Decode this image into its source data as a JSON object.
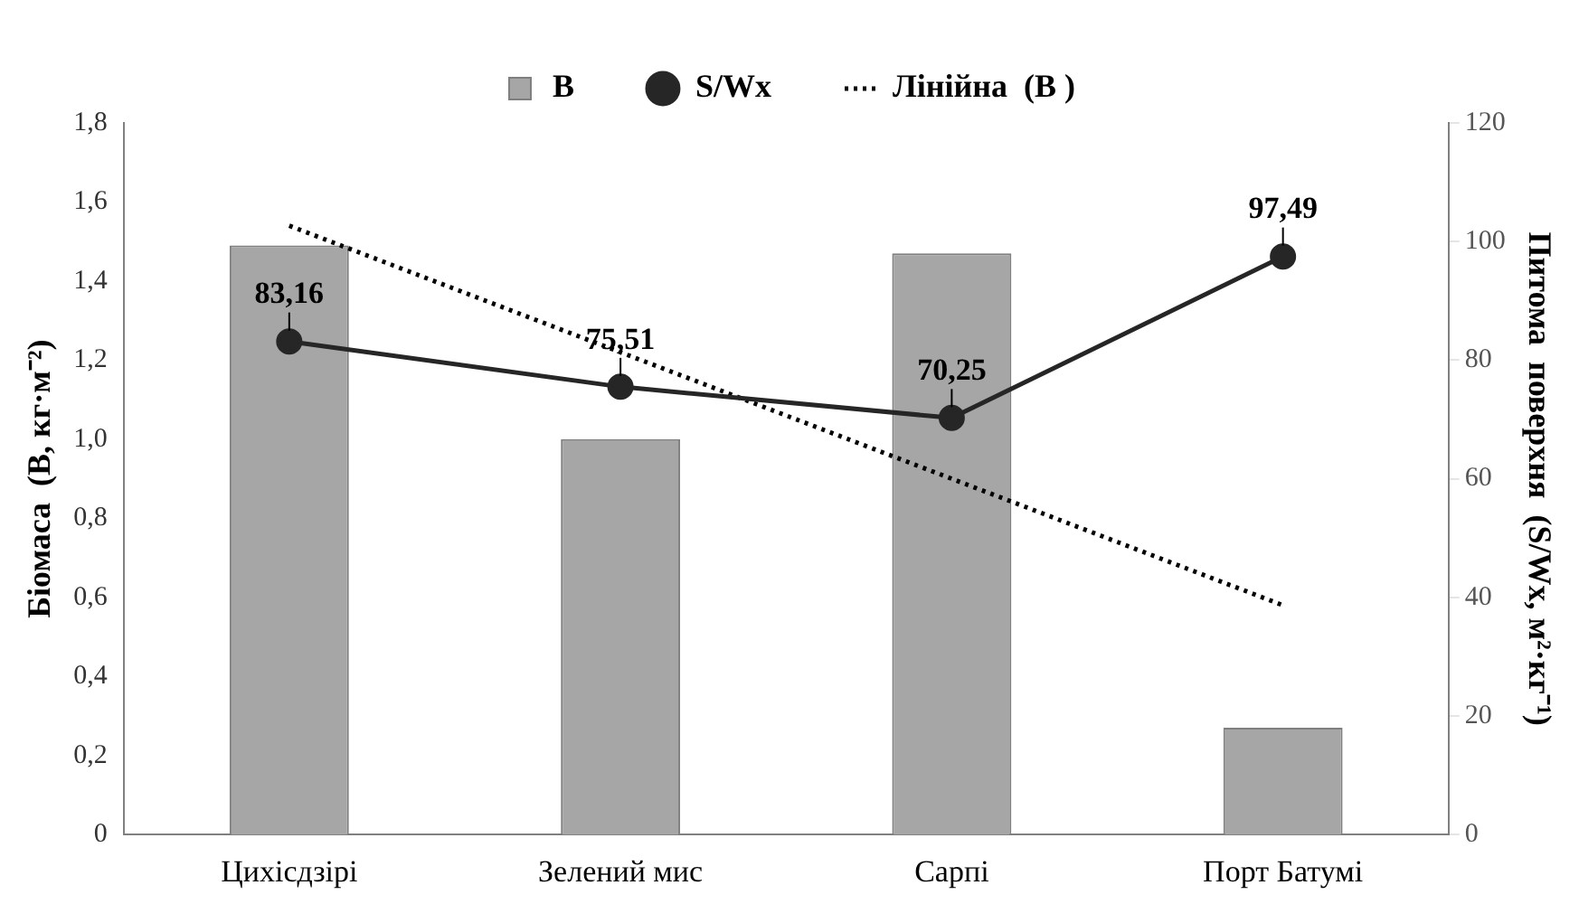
{
  "chart_data": {
    "type": "bar",
    "categories": [
      "Цихісдзірі",
      "Зелений мис",
      "Сарпі",
      "Порт Батумі"
    ],
    "ylabel": "Біомаса  (B, кг·м⁻²)",
    "y2label": "Питома  поверхня  (S/Wx, м²·кг⁻¹)",
    "series": [
      {
        "name": "B",
        "color": "#a6a6a6",
        "values": [
          1.49,
          1.0,
          1.47,
          0.27
        ]
      },
      {
        "name": "S/Wx",
        "type": "line",
        "axis": "y2",
        "color": "#262626",
        "marker": "circle",
        "values": [
          83.16,
          75.51,
          70.25,
          97.49
        ],
        "value_labels": [
          "83,16",
          "75,51",
          "70,25",
          "97,49"
        ]
      },
      {
        "name": "Лінійна  (B )",
        "type": "line",
        "color": "#000000",
        "marker": "none",
        "line_style": "dotted",
        "values": [
          1.54,
          1.22,
          0.9,
          0.58
        ]
      }
    ],
    "ylim": [
      0,
      1.8
    ],
    "yticks": [
      0,
      {
        "value": 0.2,
        "label": "0,2"
      },
      {
        "value": 0.4,
        "label": "0,4"
      },
      {
        "value": 0.6,
        "label": "0,6"
      },
      {
        "value": 0.8,
        "label": "0,8"
      },
      {
        "value": 1.0,
        "label": "1,0"
      },
      {
        "value": 1.2,
        "label": "1,2"
      },
      {
        "value": 1.4,
        "label": "1,4"
      },
      {
        "value": 1.6,
        "label": "1,6"
      },
      {
        "value": 1.8,
        "label": "1,8"
      }
    ],
    "y2lim": [
      0,
      120
    ],
    "y2ticks": [
      0,
      20,
      40,
      60,
      80,
      100,
      120
    ],
    "grid": false,
    "legend": "top"
  }
}
